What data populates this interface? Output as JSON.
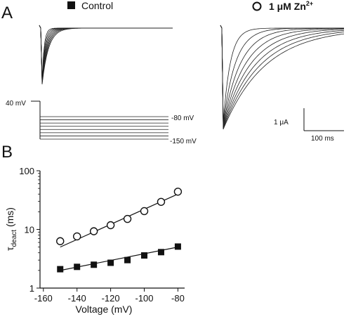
{
  "panels": {
    "a_label": "A",
    "b_label": "B"
  },
  "legend": {
    "control": "Control",
    "zinc_prefix": "1 μM Zn",
    "zinc_sup": "2+"
  },
  "protocol": {
    "hold_label": "40 mV",
    "top_label": "-80 mV",
    "bottom_label": "-150 mV",
    "step_count": 8
  },
  "scale_bar": {
    "current_label": "1 μA",
    "time_label": "100 ms"
  },
  "colors": {
    "ink": "#111111",
    "trace": "#222222",
    "background": "#ffffff"
  },
  "chart_data": {
    "type": "scatter",
    "ylabel_main": "τ",
    "ylabel_sub": "deact",
    "ylabel_unit": " (ms)",
    "xlabel": "Voltage (mV)",
    "xlim": [
      -162,
      -76
    ],
    "ylim": [
      1,
      100
    ],
    "yscale": "log",
    "x_ticks": [
      -160,
      -140,
      -120,
      -100,
      -80
    ],
    "x_tick_labels": [
      "-160",
      "-140",
      "-120",
      "-100",
      "-80"
    ],
    "y_ticks": [
      1,
      10,
      100
    ],
    "y_tick_labels": [
      "1",
      "10",
      "100"
    ],
    "x": [
      -150,
      -140,
      -130,
      -120,
      -110,
      -100,
      -90,
      -80
    ],
    "series": [
      {
        "name": "Control",
        "marker": "filled-square",
        "values": [
          2.1,
          2.3,
          2.5,
          2.7,
          3.0,
          3.6,
          4.1,
          5.1
        ],
        "fit": [
          [
            -150,
            2.0
          ],
          [
            -80,
            5.0
          ]
        ]
      },
      {
        "name": "1 μM Zn2+",
        "marker": "open-circle",
        "values": [
          6.3,
          7.6,
          9.3,
          11.8,
          15.1,
          20.5,
          29.5,
          44.0
        ],
        "fit": [
          [
            -150,
            5.0
          ],
          [
            -80,
            40.0
          ]
        ]
      }
    ]
  }
}
